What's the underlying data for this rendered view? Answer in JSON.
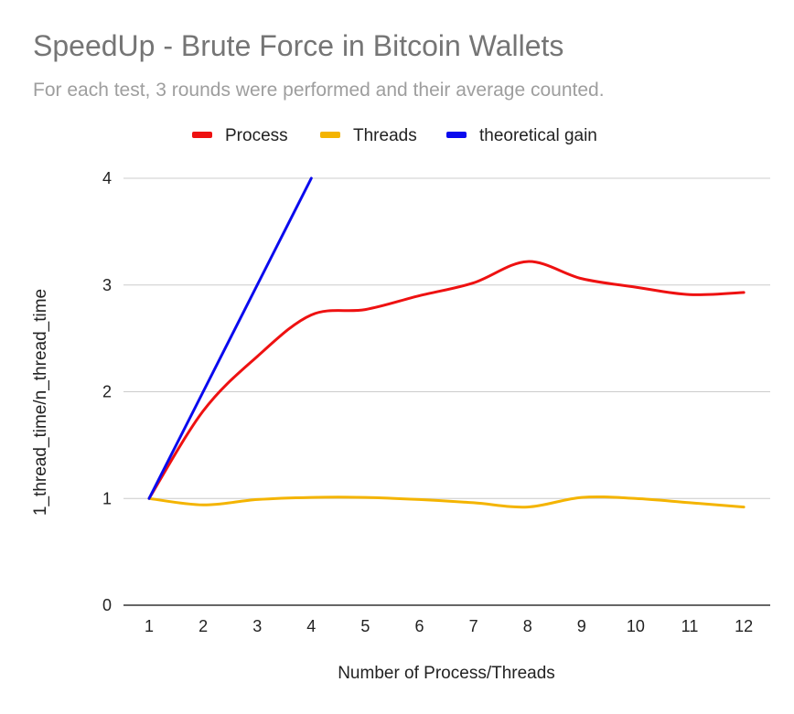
{
  "chart_data": {
    "type": "line",
    "title": "SpeedUp - Brute Force in Bitcoin Wallets",
    "subtitle": "For each test, 3 rounds were performed and their average counted.",
    "xlabel": "Number of Process/Threads",
    "ylabel": "1_thread_time/n_thread_time",
    "categories": [
      "1",
      "2",
      "3",
      "4",
      "5",
      "6",
      "7",
      "8",
      "9",
      "10",
      "11",
      "12"
    ],
    "y_ticks": [
      "0",
      "1",
      "2",
      "3",
      "4"
    ],
    "ylim": [
      0,
      4
    ],
    "grid": true,
    "legend": "top",
    "series": [
      {
        "name": "Process",
        "color": "#ee1111",
        "x": [
          1,
          2,
          3,
          4,
          5,
          6,
          7,
          8,
          9,
          10,
          11,
          12
        ],
        "values": [
          1.0,
          1.82,
          2.33,
          2.72,
          2.77,
          2.9,
          3.02,
          3.22,
          3.06,
          2.98,
          2.91,
          2.93
        ]
      },
      {
        "name": "Threads",
        "color": "#f4b400",
        "x": [
          1,
          2,
          3,
          4,
          5,
          6,
          7,
          8,
          9,
          10,
          11,
          12
        ],
        "values": [
          1.0,
          0.94,
          0.99,
          1.01,
          1.01,
          0.99,
          0.96,
          0.92,
          1.01,
          1.0,
          0.96,
          0.92
        ]
      },
      {
        "name": "theoretical gain",
        "color": "#0a0aee",
        "x": [
          1,
          2,
          3,
          4
        ],
        "values": [
          1,
          2,
          3,
          4
        ]
      }
    ]
  }
}
